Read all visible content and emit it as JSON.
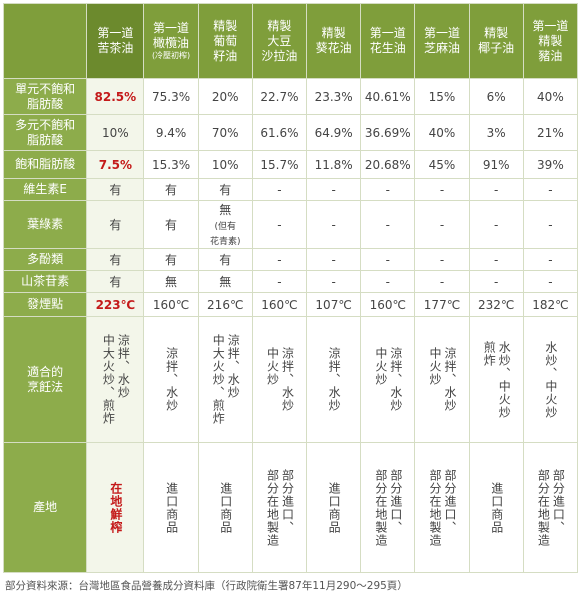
{
  "header": {
    "corner": "",
    "columns": [
      {
        "l1": "第一道",
        "l2": "苦茶油",
        "sub": ""
      },
      {
        "l1": "第一道",
        "l2": "橄欖油",
        "sub": "(冷壓初榨)"
      },
      {
        "l1": "精製",
        "l2": "葡萄",
        "l3": "籽油"
      },
      {
        "l1": "精製",
        "l2": "大豆",
        "l3": "沙拉油"
      },
      {
        "l1": "精製",
        "l2": "葵花油"
      },
      {
        "l1": "第一道",
        "l2": "花生油"
      },
      {
        "l1": "第一道",
        "l2": "芝麻油"
      },
      {
        "l1": "精製",
        "l2": "椰子油"
      },
      {
        "l1": "第一道",
        "l2": "精製",
        "l3": "豬油"
      }
    ]
  },
  "rows": {
    "mufa": {
      "l1": "單元不飽和",
      "l2": "脂肪酸",
      "values": [
        "82.5%",
        "75.3%",
        "20%",
        "22.7%",
        "23.3%",
        "40.61%",
        "15%",
        "6%",
        "40%"
      ]
    },
    "pufa": {
      "l1": "多元不飽和",
      "l2": "脂肪酸",
      "values": [
        "10%",
        "9.4%",
        "70%",
        "61.6%",
        "64.9%",
        "36.69%",
        "40%",
        "3%",
        "21%"
      ]
    },
    "sfa": {
      "label": "飽和脂肪酸",
      "values": [
        "7.5%",
        "15.3%",
        "10%",
        "15.7%",
        "11.8%",
        "20.68%",
        "45%",
        "91%",
        "39%"
      ]
    },
    "vite": {
      "label": "維生素E",
      "values": [
        "有",
        "有",
        "有",
        "-",
        "-",
        "-",
        "-",
        "-",
        "-"
      ]
    },
    "chlorophyll": {
      "label": "葉綠素",
      "values": [
        "有",
        "有",
        "無",
        "-",
        "-",
        "-",
        "-",
        "-",
        "-"
      ],
      "grape_note1": "(但有",
      "grape_note2": "花青素)"
    },
    "polyphenol": {
      "label": "多酚類",
      "values": [
        "有",
        "有",
        "有",
        "-",
        "-",
        "-",
        "-",
        "-",
        "-"
      ]
    },
    "saponin": {
      "label": "山茶苷素",
      "values": [
        "有",
        "無",
        "無",
        "-",
        "-",
        "-",
        "-",
        "-",
        "-"
      ]
    },
    "smoke": {
      "label": "發煙點",
      "values": [
        "223℃",
        "160℃",
        "216℃",
        "160℃",
        "107℃",
        "160℃",
        "177℃",
        "232℃",
        "182℃"
      ]
    },
    "cooking": {
      "l1": "適合的",
      "l2": "烹飪法",
      "values": [
        "涼拌、水炒\n中大火炒、煎炸",
        "涼拌、水炒",
        "涼拌、水炒\n中大火炒、煎炸",
        "涼拌、水炒\n中火炒",
        "涼拌、水炒",
        "涼拌、水炒\n中火炒",
        "涼拌、水炒\n中火炒",
        "水炒、中火炒\n煎炸",
        "水炒、中火炒"
      ]
    },
    "origin": {
      "label": "產地",
      "values": [
        "在地鮮榨",
        "進口商品",
        "進口商品",
        "部分進口、\n部分在地製造",
        "進口商品",
        "部分進口、\n部分在地製造",
        "部分進口、\n部分在地製造",
        "進口商品",
        "部分進口、\n部分在地製造"
      ]
    }
  },
  "footnote": "部分資料來源：台灣地區食品營養成分資料庫（行政院衛生署87年11月290～295頁）",
  "colors": {
    "header_green": "#7f9e3b",
    "row_label_green": "#8dac4b",
    "highlight_red": "#c41a1a",
    "border": "#d5ddc3"
  }
}
